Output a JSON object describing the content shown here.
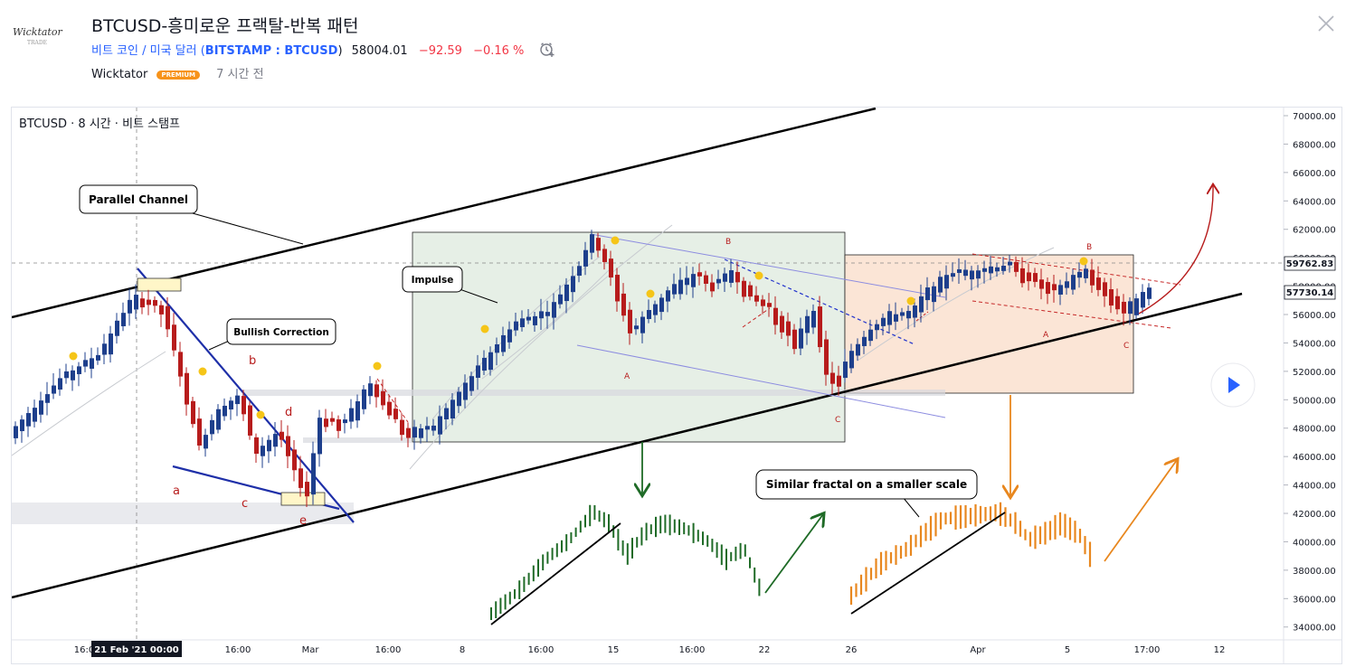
{
  "header": {
    "logo_text": "Wicktator",
    "logo_subtext": "TRADE",
    "title": "BTCUSD-흥미로운 프랙탈-반복 패턴",
    "symbol_name": "비트 코인 / 미국 달러 (",
    "exchange": "BITSTAMP : BTCUSD",
    "symbol_close": ")",
    "price": "58004.01",
    "change": "−92.59",
    "change_pct": "−0.16 %",
    "author": "Wicktator",
    "badge": "PREMIUM",
    "time_ago": "7 시간 전"
  },
  "chart_data": {
    "type": "candlestick",
    "legend": "BTCUSD · 8 시간 · 비트 스탬프",
    "y_axis": {
      "min": 33000,
      "max": 70500,
      "ticks": [
        "70000.00",
        "68000.00",
        "66000.00",
        "64000.00",
        "62000.00",
        "60000.00",
        "58000.00",
        "56000.00",
        "54000.00",
        "52000.00",
        "50000.00",
        "48000.00",
        "46000.00",
        "44000.00",
        "42000.00",
        "40000.00",
        "38000.00",
        "36000.00",
        "34000.00"
      ]
    },
    "x_axis": {
      "ticks": [
        "16:0",
        "16:00",
        "Mar",
        "16:00",
        "8",
        "16:00",
        "15",
        "16:00",
        "22",
        "26",
        "Apr",
        "5",
        "17:00",
        "12"
      ],
      "crosshair_label": "21 Feb '21   00:00"
    },
    "price_labels": {
      "crosshair": "59762.83",
      "last": "57730.14"
    },
    "last_price": 57730.14,
    "crosshair_price": 59762.83,
    "annotations": {
      "callouts": [
        "Parallel Channel",
        "Bullish Correction",
        "Impulse",
        "Similar fractal on a smaller scale"
      ],
      "waves_correction": [
        "a",
        "b",
        "c",
        "d",
        "e"
      ],
      "waves_abc_1": [
        "B",
        "A",
        "C"
      ],
      "waves_abc_2": [
        "B",
        "A",
        "C"
      ]
    },
    "colors": {
      "up": "#1e3f8c",
      "down": "#b71c1c",
      "green_fractal": "#1f6b27",
      "orange_fractal": "#e8871e",
      "channel": "#000000",
      "wedge": "#1e2fa8"
    }
  }
}
